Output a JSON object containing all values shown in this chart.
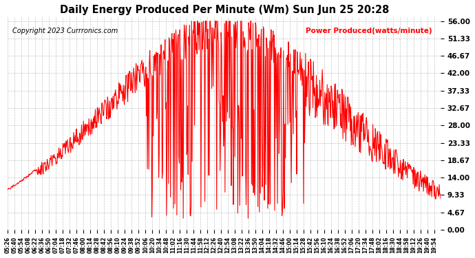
{
  "title": "Daily Energy Produced Per Minute (Wm) Sun Jun 25 20:28",
  "copyright": "Copyright 2023 Currronics.com",
  "legend_label": "Power Produced(watts/minute)",
  "y_ticks": [
    0.0,
    4.67,
    9.33,
    14.0,
    18.67,
    23.33,
    28.0,
    32.67,
    37.33,
    42.0,
    46.67,
    51.33,
    56.0
  ],
  "y_max": 56.0,
  "y_min": 0.0,
  "line_color": "red",
  "grid_color": "#aaaaaa",
  "bg_color": "white",
  "title_color": "black",
  "copyright_color": "black",
  "legend_color": "red"
}
